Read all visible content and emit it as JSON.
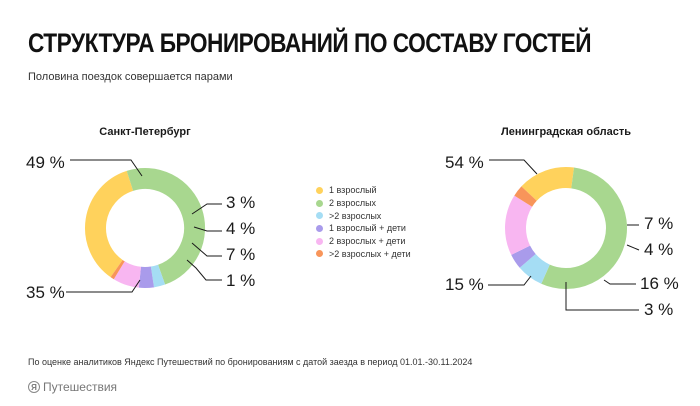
{
  "header": {
    "title": "СТРУКТУРА БРОНИРОВАНИЙ ПО СОСТАВУ ГОСТЕЙ",
    "subtitle": "Половина поездок совершается парами"
  },
  "legend": [
    {
      "label": "1 взрослый",
      "color": "#FFD25C"
    },
    {
      "label": "2 взрослых",
      "color": "#A8D78F"
    },
    {
      "label": ">2 взрослых",
      "color": "#A5DDF4"
    },
    {
      "label": "1 взрослый + дети",
      "color": "#A99BEB"
    },
    {
      "label": "2 взрослых + дети",
      "color": "#F8B6F1"
    },
    {
      "label": ">2 взрослых + дети",
      "color": "#F8955A"
    }
  ],
  "chart_data": [
    {
      "type": "pie",
      "title": "Санкт-Петербург",
      "categories": [
        "1 взрослый",
        "2 взрослых",
        ">2 взрослых",
        "1 взрослый + дети",
        "2 взрослых + дети",
        ">2 взрослых + дети"
      ],
      "values": [
        35,
        49,
        3,
        4,
        7,
        1
      ],
      "labels": [
        "35 %",
        "49 %",
        "3 %",
        "4 %",
        "7 %",
        "1 %"
      ]
    },
    {
      "type": "pie",
      "title": "Ленинградская область",
      "categories": [
        "1 взрослый",
        "2 взрослых",
        ">2 взрослых",
        "1 взрослый + дети",
        "2 взрослых + дети",
        ">2 взрослых + дети"
      ],
      "values": [
        15,
        54,
        7,
        4,
        16,
        3
      ],
      "labels": [
        "15 %",
        "54 %",
        "7 %",
        "4 %",
        "16 %",
        "3 %"
      ]
    }
  ],
  "footer": {
    "note": "По оценке аналитиков Яндекс Путешествий по бронированиям с датой заезда в период 01.01.-30.11.2024",
    "logo_mark": "Я",
    "logo_text": "Путешествия"
  }
}
